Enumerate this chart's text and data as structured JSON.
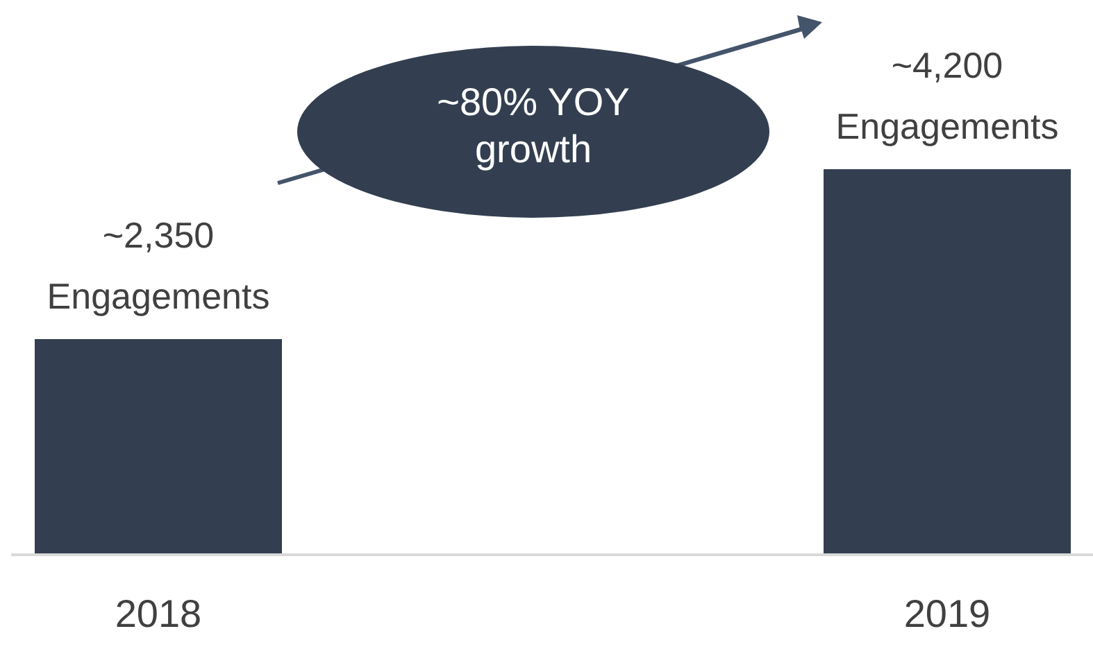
{
  "chart_data": {
    "type": "bar",
    "categories": [
      "2018",
      "2019"
    ],
    "values": [
      2350,
      4200
    ],
    "value_labels": [
      "~2,350 Engagements",
      "~4,200 Engagements"
    ],
    "color": "#333f50",
    "annotations": [
      "~80% YOY growth"
    ],
    "grid": false,
    "legend": false
  }
}
